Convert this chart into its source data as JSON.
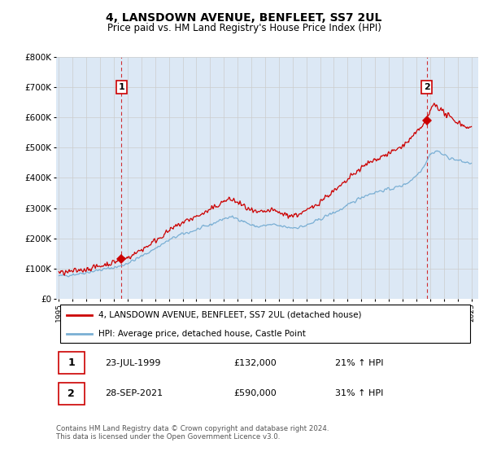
{
  "title": "4, LANSDOWN AVENUE, BENFLEET, SS7 2UL",
  "subtitle": "Price paid vs. HM Land Registry's House Price Index (HPI)",
  "background_color": "#ffffff",
  "grid_color": "#cccccc",
  "plot_bg": "#dce8f5",
  "red_color": "#cc0000",
  "blue_color": "#7aafd4",
  "sale1_year": 1999.55,
  "sale1_price": 132000,
  "sale1_label": "1",
  "sale1_date": "23-JUL-1999",
  "sale1_pct": "21% ↑ HPI",
  "sale2_year": 2021.75,
  "sale2_price": 590000,
  "sale2_label": "2",
  "sale2_date": "28-SEP-2021",
  "sale2_pct": "31% ↑ HPI",
  "legend_red": "4, LANSDOWN AVENUE, BENFLEET, SS7 2UL (detached house)",
  "legend_blue": "HPI: Average price, detached house, Castle Point",
  "footer": "Contains HM Land Registry data © Crown copyright and database right 2024.\nThis data is licensed under the Open Government Licence v3.0.",
  "ylim": [
    0,
    800000
  ],
  "xlim_start": 1994.8,
  "xlim_end": 2025.5,
  "yticks": [
    0,
    100000,
    200000,
    300000,
    400000,
    500000,
    600000,
    700000,
    800000
  ],
  "ytick_labels": [
    "£0",
    "£100K",
    "£200K",
    "£300K",
    "£400K",
    "£500K",
    "£600K",
    "£700K",
    "£800K"
  ],
  "xticks": [
    1995,
    1996,
    1997,
    1998,
    1999,
    2000,
    2001,
    2002,
    2003,
    2004,
    2005,
    2006,
    2007,
    2008,
    2009,
    2010,
    2011,
    2012,
    2013,
    2014,
    2015,
    2016,
    2017,
    2018,
    2019,
    2020,
    2021,
    2022,
    2023,
    2024,
    2025
  ]
}
